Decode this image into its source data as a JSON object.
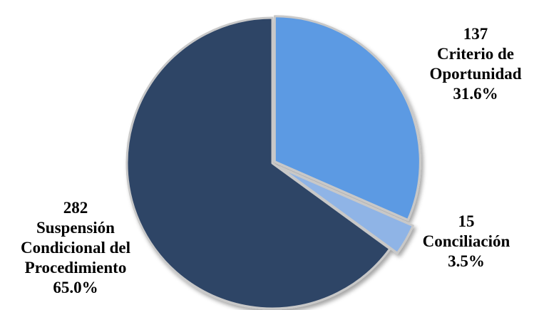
{
  "chart_data": {
    "type": "pie",
    "title": "",
    "start_angle_deg": 0,
    "direction": "clockwise",
    "legend": "none",
    "slices": [
      {
        "name": "Criterio de Oportunidad",
        "label_lines": [
          "Criterio de",
          "Oportunidad"
        ],
        "value": 137,
        "percent_label": "31.6%",
        "color": "#5b9ae3"
      },
      {
        "name": "Conciliación",
        "label_lines": [
          "Conciliación"
        ],
        "value": 15,
        "percent_label": "3.5%",
        "color": "#8fb4e6"
      },
      {
        "name": "Suspensión Condicional del Procedimiento",
        "label_lines": [
          "Suspensión",
          "Condicional del",
          "Procedimiento"
        ],
        "value": 282,
        "percent_label": "65.0%",
        "color": "#2d4466"
      }
    ]
  }
}
